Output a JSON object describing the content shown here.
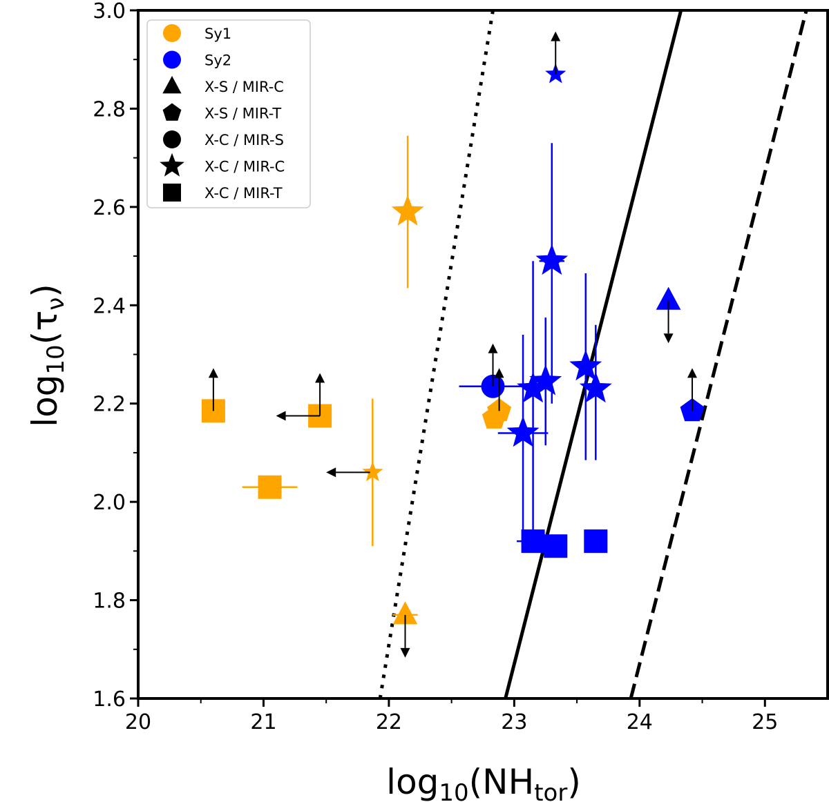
{
  "chart_data": {
    "type": "scatter",
    "xlabel_main": "log",
    "xlabel_sub": "10",
    "xlabel_paren": "(NH",
    "xlabel_sub2": "tor",
    "xlabel_close": ")",
    "ylabel_main": "log",
    "ylabel_sub": "10",
    "ylabel_paren": "(τ",
    "ylabel_sub2": "ν",
    "ylabel_close": ")",
    "xlim": [
      20,
      25.5
    ],
    "ylim": [
      1.6,
      3.0
    ],
    "xticks": [
      {
        "value": 20,
        "label": "20"
      },
      {
        "value": 21,
        "label": "21"
      },
      {
        "value": 22,
        "label": "22"
      },
      {
        "value": 23,
        "label": "23"
      },
      {
        "value": 24,
        "label": "24"
      },
      {
        "value": 25,
        "label": "25"
      }
    ],
    "yticks": [
      {
        "value": 1.6,
        "label": "1.6"
      },
      {
        "value": 1.8,
        "label": "1.8"
      },
      {
        "value": 2.0,
        "label": "2.0"
      },
      {
        "value": 2.2,
        "label": "2.2"
      },
      {
        "value": 2.4,
        "label": "2.4"
      },
      {
        "value": 2.6,
        "label": "2.6"
      },
      {
        "value": 2.8,
        "label": "2.8"
      },
      {
        "value": 3.0,
        "label": "3.0"
      }
    ],
    "colors": {
      "Sy1": "#FFA500",
      "Sy2": "#0000FF",
      "arrow": "#000000"
    },
    "lines": [
      {
        "name": "dotted-line",
        "style": "dotted",
        "from": [
          21.93,
          1.6
        ],
        "to": [
          22.83,
          3.0
        ]
      },
      {
        "name": "solid-line",
        "style": "solid",
        "from": [
          22.93,
          1.6
        ],
        "to": [
          24.33,
          3.0
        ]
      },
      {
        "name": "dashed-line",
        "style": "dashed",
        "from": [
          23.93,
          1.6
        ],
        "to": [
          25.33,
          3.0
        ]
      }
    ],
    "legend": [
      {
        "label": "Sy1",
        "marker": "circle",
        "color": "#FFA500"
      },
      {
        "label": "Sy2",
        "marker": "circle",
        "color": "#0000FF"
      },
      {
        "label": "X-S / MIR-C",
        "marker": "triangle",
        "color": "#000000"
      },
      {
        "label": "X-S / MIR-T",
        "marker": "pentagon",
        "color": "#000000"
      },
      {
        "label": "X-C / MIR-S",
        "marker": "circle",
        "color": "#000000"
      },
      {
        "label": "X-C / MIR-C",
        "marker": "star",
        "color": "#000000"
      },
      {
        "label": "X-C / MIR-T",
        "marker": "square",
        "color": "#000000"
      }
    ],
    "points": [
      {
        "group": "Sy1",
        "marker": "square",
        "x": 20.6,
        "y": 2.185,
        "arrow": "up"
      },
      {
        "group": "Sy1",
        "marker": "square",
        "x": 21.45,
        "y": 2.175,
        "arrow": "up"
      },
      {
        "group": "Sy1",
        "marker": "square",
        "x": 21.05,
        "y": 2.03,
        "xerr": 0.22
      },
      {
        "group": "Sy1",
        "marker": "star",
        "x": 22.15,
        "y": 2.59,
        "yerr_low": 0.155,
        "yerr_high": 0.155
      },
      {
        "group": "Sy1",
        "marker": "star",
        "x": 21.87,
        "y": 2.06,
        "yerr_low": 0.15,
        "yerr_high": 0.15,
        "size": "small"
      },
      {
        "group": "Sy1",
        "marker": "triangle",
        "x": 22.13,
        "y": 1.77,
        "xerr": 0.1,
        "arrow": "down"
      },
      {
        "group": "Sy1",
        "marker": "pentagon",
        "x": 22.84,
        "y": 2.17
      },
      {
        "group": "Sy1",
        "marker": "pentagon",
        "x": 22.88,
        "y": 2.185,
        "arrow": "up"
      },
      {
        "group": "Sy2",
        "marker": "circle",
        "x": 22.83,
        "y": 2.235,
        "xerr_low": 0.27,
        "xerr_high": 0.27,
        "arrow": "up"
      },
      {
        "group": "Sy2",
        "marker": "star",
        "x": 23.33,
        "y": 2.87,
        "arrow": "up",
        "size": "small"
      },
      {
        "group": "Sy2",
        "marker": "star",
        "x": 23.3,
        "y": 2.49,
        "xerr": 0.1,
        "yerr_low": 0.29,
        "yerr_high": 0.24
      },
      {
        "group": "Sy2",
        "marker": "star",
        "x": 23.07,
        "y": 2.14,
        "xerr": 0.2,
        "yerr_low": 0.2,
        "yerr_high": 0.2
      },
      {
        "group": "Sy2",
        "marker": "star",
        "x": 23.15,
        "y": 2.23,
        "yerr_low": 0.29,
        "yerr_high": 0.26
      },
      {
        "group": "Sy2",
        "marker": "star",
        "x": 23.25,
        "y": 2.245,
        "yerr_low": 0.13,
        "yerr_high": 0.13
      },
      {
        "group": "Sy2",
        "marker": "star",
        "x": 23.57,
        "y": 2.275,
        "yerr_low": 0.19,
        "yerr_high": 0.19
      },
      {
        "group": "Sy2",
        "marker": "star",
        "x": 23.65,
        "y": 2.23,
        "yerr_low": 0.145,
        "yerr_high": 0.13
      },
      {
        "group": "Sy2",
        "marker": "square",
        "x": 23.15,
        "y": 1.92,
        "xerr": 0.13
      },
      {
        "group": "Sy2",
        "marker": "square",
        "x": 23.33,
        "y": 1.91
      },
      {
        "group": "Sy2",
        "marker": "square",
        "x": 23.65,
        "y": 1.92
      },
      {
        "group": "Sy2",
        "marker": "triangle",
        "x": 24.23,
        "y": 2.41,
        "arrow": "down"
      },
      {
        "group": "Sy2",
        "marker": "pentagon",
        "x": 24.42,
        "y": 2.185,
        "arrow": "up"
      }
    ],
    "left_arrows": [
      {
        "x_start": 21.45,
        "x_end": 21.1,
        "y": 2.175
      },
      {
        "x_start": 21.85,
        "x_end": 21.5,
        "y": 2.06
      }
    ]
  }
}
